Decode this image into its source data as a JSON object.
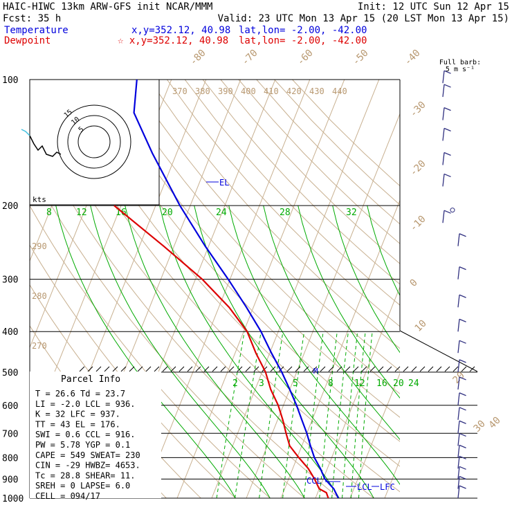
{
  "header": {
    "line1_left": "HAIC-HIWC 13km ARW-GFS init   NCAR/MMM",
    "line1_right": "Init: 12 UTC Sun 12 Apr 15",
    "line2_left": "Fcst:   35 h",
    "line2_right": "Valid: 23 UTC Mon 13 Apr 15 (20 LST Mon 13 Apr 15)",
    "temp_label": "Temperature",
    "temp_readout": "x,y=352.12, 40.98",
    "temp_latlon": "lat,lon= -2.00, -42.00",
    "dew_label": "Dewpoint",
    "dew_readout": "☆ x,y=352.12, 40.98",
    "dew_latlon": "lat,lon= -2.00, -42.00"
  },
  "colors": {
    "temperature": "#0000dd",
    "dewpoint": "#dd0000",
    "mixing_ratio": "#00aa00",
    "isotherm": "#c8b090",
    "hodograph_lower": "#000000",
    "hodograph_upper": "#40c0e0"
  },
  "chart_data": {
    "type": "line",
    "chart_kind": "skew-T log-p sounding",
    "y_axis": {
      "scale": "log",
      "ticks": [
        "100",
        "200",
        "300",
        "400",
        "500",
        "600",
        "700",
        "800",
        "900",
        "1000"
      ]
    },
    "isotherm_labels": [
      "-80",
      "-70",
      "-60",
      "-50",
      "-40",
      "-30",
      "-20",
      "-10",
      "0",
      "10",
      "20",
      "30",
      "40"
    ],
    "theta_labels": [
      "370",
      "380",
      "390",
      "400",
      "410",
      "420",
      "430",
      "440"
    ],
    "theta_left_labels": [
      "290",
      "280",
      "270"
    ],
    "mixing_ratio_labels_upper": [
      "8",
      "12",
      "16",
      "20",
      "24",
      "28",
      "32"
    ],
    "mixing_ratio_labels_lower": [
      "2",
      "3",
      "5",
      "8",
      "12",
      "16",
      "20",
      "24"
    ],
    "series": [
      {
        "name": "Temperature",
        "values": [
          [
            1000,
            26.6
          ],
          [
            950,
            24.2
          ],
          [
            900,
            20.5
          ],
          [
            850,
            18.0
          ],
          [
            800,
            15.0
          ],
          [
            750,
            12.5
          ],
          [
            700,
            10.0
          ],
          [
            650,
            7.0
          ],
          [
            600,
            3.8
          ],
          [
            550,
            0.0
          ],
          [
            500,
            -4.3
          ],
          [
            450,
            -9.5
          ],
          [
            400,
            -15.0
          ],
          [
            350,
            -22.0
          ],
          [
            300,
            -30.5
          ],
          [
            250,
            -41.0
          ],
          [
            200,
            -53.0
          ],
          [
            150,
            -67.0
          ],
          [
            120,
            -77.0
          ],
          [
            100,
            -80.0
          ]
        ]
      },
      {
        "name": "Dewpoint",
        "values": [
          [
            1000,
            23.7
          ],
          [
            970,
            22.5
          ],
          [
            950,
            20.0
          ],
          [
            900,
            17.5
          ],
          [
            850,
            14.5
          ],
          [
            800,
            10.5
          ],
          [
            750,
            6.5
          ],
          [
            700,
            4.0
          ],
          [
            650,
            1.5
          ],
          [
            600,
            -1.5
          ],
          [
            550,
            -5.5
          ],
          [
            500,
            -9.0
          ],
          [
            450,
            -14.0
          ],
          [
            400,
            -19.0
          ],
          [
            350,
            -27.0
          ],
          [
            300,
            -38.0
          ],
          [
            250,
            -53.0
          ],
          [
            200,
            -72.0
          ]
        ]
      }
    ],
    "annotations": {
      "el": "EL",
      "m": "M",
      "ccl": "CCL",
      "lcl": "LCL",
      "lfc": "LFC"
    },
    "hodograph": {
      "units": "kts",
      "ring_labels": [
        "5",
        "10",
        "15"
      ],
      "points_lower": [
        [
          -16,
          3
        ],
        [
          -14,
          -1
        ],
        [
          -12,
          -4
        ],
        [
          -10,
          -2
        ],
        [
          -8,
          -6
        ],
        [
          -5,
          -7
        ],
        [
          -3,
          -5
        ],
        [
          -1,
          -6
        ]
      ],
      "points_upper": [
        [
          -20,
          6
        ],
        [
          -18,
          5
        ],
        [
          -16,
          3
        ]
      ]
    },
    "wind_barbs": {
      "title": "Full barb:",
      "subtitle": "5 m s⁻¹",
      "profile": [
        {
          "p": 1000,
          "dir": 90,
          "spd": 10
        },
        {
          "p": 950,
          "dir": 95,
          "spd": 10
        },
        {
          "p": 900,
          "dir": 100,
          "spd": 10
        },
        {
          "p": 850,
          "dir": 100,
          "spd": 10
        },
        {
          "p": 800,
          "dir": 105,
          "spd": 10
        },
        {
          "p": 750,
          "dir": 110,
          "spd": 10
        },
        {
          "p": 700,
          "dir": 110,
          "spd": 10
        },
        {
          "p": 650,
          "dir": 115,
          "spd": 10
        },
        {
          "p": 600,
          "dir": 120,
          "spd": 10
        },
        {
          "p": 550,
          "dir": 120,
          "spd": 10
        },
        {
          "p": 500,
          "dir": 115,
          "spd": 10
        },
        {
          "p": 450,
          "dir": 110,
          "spd": 10
        },
        {
          "p": 400,
          "dir": 110,
          "spd": 10
        },
        {
          "p": 350,
          "dir": 105,
          "spd": 10
        },
        {
          "p": 300,
          "dir": 100,
          "spd": 10
        },
        {
          "p": 250,
          "dir": 100,
          "spd": 10
        },
        {
          "p": 220,
          "dir": 95,
          "spd": 10
        },
        {
          "p": 205,
          "dir": 0,
          "spd": 0
        },
        {
          "p": 180,
          "dir": 300,
          "spd": 10
        },
        {
          "p": 160,
          "dir": 290,
          "spd": 10
        },
        {
          "p": 140,
          "dir": 270,
          "spd": 10
        },
        {
          "p": 125,
          "dir": 260,
          "spd": 10
        },
        {
          "p": 110,
          "dir": 250,
          "spd": 10
        },
        {
          "p": 102,
          "dir": 240,
          "spd": 10
        }
      ]
    }
  },
  "parcel_info": {
    "title": "Parcel Info",
    "rows": [
      "T  =   26.6 Td =  23.7",
      "LI =   -2.0 LCL =  936.",
      "K  =     32 LFC =  937.",
      "TT =     43 EL  =  176.",
      "SWI =   0.6 CCL =  916.",
      "PW =   5.78 YGP =   0.1",
      "CAPE =  549 SWEAT=  230",
      "CIN =   -29 HWBZ= 4653.",
      "Tc =   28.8 SHEAR=  11.",
      "SREH =    0 LAPSE=  6.0",
      "CELL = 094/17"
    ]
  }
}
